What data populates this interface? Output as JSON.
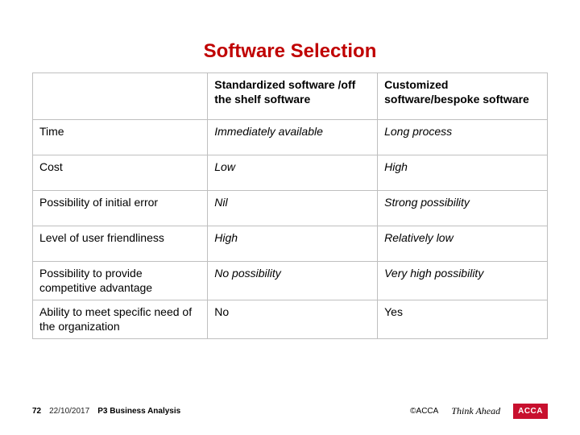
{
  "title": {
    "text": "Software Selection",
    "color": "#c00000"
  },
  "table": {
    "border_color": "#bfbfbf",
    "columns": [
      "",
      "Standardized software /off the shelf software",
      "Customized software/bespoke software"
    ],
    "rows": [
      {
        "label": " Time",
        "std": "Immediately available",
        "cust": "Long process",
        "italic": true,
        "tall": true
      },
      {
        "label": "Cost",
        "std": "Low",
        "cust": "High",
        "italic": true,
        "tall": true
      },
      {
        "label": "Possibility of initial error",
        "std": "Nil",
        "cust": "Strong possibility",
        "italic": true,
        "tall": true
      },
      {
        "label": " Level of user friendliness",
        "std": "High",
        "cust": "Relatively low",
        "italic": true,
        "tall": true
      },
      {
        "label": "Possibility to provide competitive advantage",
        "std": "No possibility",
        "cust": "Very high possibility",
        "italic": true,
        "tall": false
      },
      {
        "label": "Ability to meet specific need of the organization",
        "std": "No",
        "cust": "Yes",
        "italic": false,
        "tall": false
      }
    ]
  },
  "footer": {
    "page": "72",
    "date": "22/10/2017",
    "course": "P3  Business Analysis",
    "copyright": "©ACCA",
    "think": "Think Ahead",
    "logo": "ACCA",
    "logo_bg": "#c8102e"
  }
}
